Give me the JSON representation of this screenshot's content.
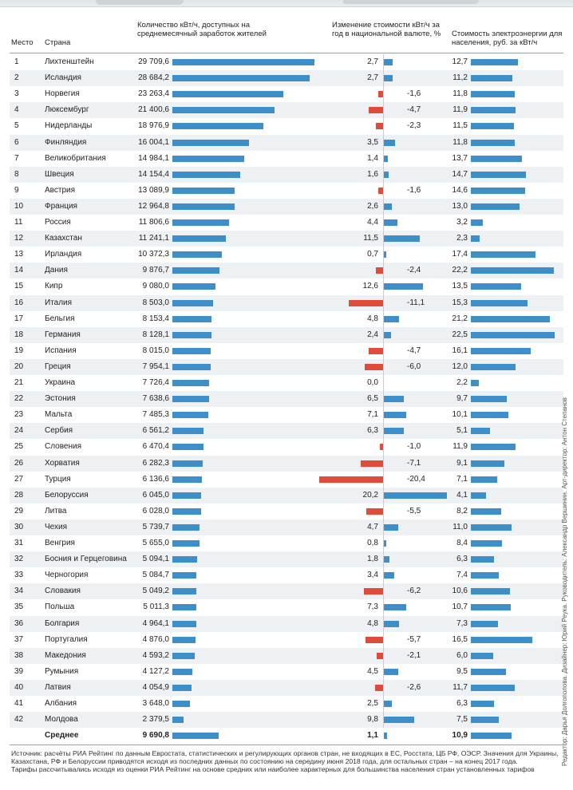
{
  "headers": {
    "rank": "Место",
    "country": "Страна",
    "kwh": "Количество кВт/ч, доступных на среднемесячный заработок жителей",
    "change": "Изменение стоимости кВт/ч за год в национальной валюте, %",
    "price": "Стоимость электроэнергии для населения, руб. за кВт/ч"
  },
  "colors": {
    "positive": "#3d8ec9",
    "negative": "#e04b3a",
    "shade": "#eef1f3"
  },
  "chart_data": {
    "type": "table",
    "title": "",
    "rows": [
      {
        "rank": "1",
        "country": "Лихтенштейн",
        "kwh": "29 709,6",
        "kwh_value": 29709.6,
        "change": "2,7",
        "change_value": 2.7,
        "price": "12,7",
        "price_value": 12.7
      },
      {
        "rank": "2",
        "country": "Исландия",
        "kwh": "28 684,2",
        "kwh_value": 28684.2,
        "change": "2,7",
        "change_value": 2.7,
        "price": "11,2",
        "price_value": 11.2
      },
      {
        "rank": "3",
        "country": "Норвегия",
        "kwh": "23 263,4",
        "kwh_value": 23263.4,
        "change": "-1,6",
        "change_value": -1.6,
        "price": "11,8",
        "price_value": 11.8
      },
      {
        "rank": "4",
        "country": "Люксембург",
        "kwh": "21 400,6",
        "kwh_value": 21400.6,
        "change": "-4,7",
        "change_value": -4.7,
        "price": "11,9",
        "price_value": 11.9
      },
      {
        "rank": "5",
        "country": "Нидерланды",
        "kwh": "18 976,9",
        "kwh_value": 18976.9,
        "change": "-2,3",
        "change_value": -2.3,
        "price": "11,5",
        "price_value": 11.5
      },
      {
        "rank": "6",
        "country": "Финляндия",
        "kwh": "16 004,1",
        "kwh_value": 16004.1,
        "change": "3,5",
        "change_value": 3.5,
        "price": "11,8",
        "price_value": 11.8
      },
      {
        "rank": "7",
        "country": "Великобритания",
        "kwh": "14 984,1",
        "kwh_value": 14984.1,
        "change": "1,4",
        "change_value": 1.4,
        "price": "13,7",
        "price_value": 13.7
      },
      {
        "rank": "8",
        "country": "Швеция",
        "kwh": "14 154,4",
        "kwh_value": 14154.4,
        "change": "1,6",
        "change_value": 1.6,
        "price": "14,7",
        "price_value": 14.7
      },
      {
        "rank": "9",
        "country": "Австрия",
        "kwh": "13 089,9",
        "kwh_value": 13089.9,
        "change": "-1,6",
        "change_value": -1.6,
        "price": "14,6",
        "price_value": 14.6
      },
      {
        "rank": "10",
        "country": "Франция",
        "kwh": "12 964,8",
        "kwh_value": 12964.8,
        "change": "2,6",
        "change_value": 2.6,
        "price": "13,0",
        "price_value": 13.0
      },
      {
        "rank": "11",
        "country": "Россия",
        "kwh": "11 806,6",
        "kwh_value": 11806.6,
        "change": "4,4",
        "change_value": 4.4,
        "price": "3,2",
        "price_value": 3.2
      },
      {
        "rank": "12",
        "country": "Казахстан",
        "kwh": "11 241,1",
        "kwh_value": 11241.1,
        "change": "11,5",
        "change_value": 11.5,
        "price": "2,3",
        "price_value": 2.3
      },
      {
        "rank": "13",
        "country": "Ирландия",
        "kwh": "10 372,3",
        "kwh_value": 10372.3,
        "change": "0,7",
        "change_value": 0.7,
        "price": "17,4",
        "price_value": 17.4
      },
      {
        "rank": "14",
        "country": "Дания",
        "kwh": "9 876,7",
        "kwh_value": 9876.7,
        "change": "-2,4",
        "change_value": -2.4,
        "price": "22,2",
        "price_value": 22.2
      },
      {
        "rank": "15",
        "country": "Кипр",
        "kwh": "9 080,0",
        "kwh_value": 9080.0,
        "change": "12,6",
        "change_value": 12.6,
        "price": "13,5",
        "price_value": 13.5
      },
      {
        "rank": "16",
        "country": "Италия",
        "kwh": "8 503,0",
        "kwh_value": 8503.0,
        "change": "-11,1",
        "change_value": -11.1,
        "price": "15,3",
        "price_value": 15.3
      },
      {
        "rank": "17",
        "country": "Бельгия",
        "kwh": "8 153,4",
        "kwh_value": 8153.4,
        "change": "4,8",
        "change_value": 4.8,
        "price": "21,2",
        "price_value": 21.2
      },
      {
        "rank": "18",
        "country": "Германия",
        "kwh": "8 128,1",
        "kwh_value": 8128.1,
        "change": "2,4",
        "change_value": 2.4,
        "price": "22,5",
        "price_value": 22.5
      },
      {
        "rank": "19",
        "country": "Испания",
        "kwh": "8 015,0",
        "kwh_value": 8015.0,
        "change": "-4,7",
        "change_value": -4.7,
        "price": "16,1",
        "price_value": 16.1
      },
      {
        "rank": "20",
        "country": "Греция",
        "kwh": "7 954,1",
        "kwh_value": 7954.1,
        "change": "-6,0",
        "change_value": -6.0,
        "price": "12,0",
        "price_value": 12.0
      },
      {
        "rank": "21",
        "country": "Украина",
        "kwh": "7 726,4",
        "kwh_value": 7726.4,
        "change": "0,0",
        "change_value": 0.0,
        "price": "2,2",
        "price_value": 2.2
      },
      {
        "rank": "22",
        "country": "Эстония",
        "kwh": "7 638,6",
        "kwh_value": 7638.6,
        "change": "6,5",
        "change_value": 6.5,
        "price": "9,7",
        "price_value": 9.7
      },
      {
        "rank": "23",
        "country": "Мальта",
        "kwh": "7 485,3",
        "kwh_value": 7485.3,
        "change": "7,1",
        "change_value": 7.1,
        "price": "10,1",
        "price_value": 10.1
      },
      {
        "rank": "24",
        "country": "Сербия",
        "kwh": "6 561,2",
        "kwh_value": 6561.2,
        "change": "6,3",
        "change_value": 6.3,
        "price": "5,1",
        "price_value": 5.1
      },
      {
        "rank": "25",
        "country": "Словения",
        "kwh": "6 470,4",
        "kwh_value": 6470.4,
        "change": "-1,0",
        "change_value": -1.0,
        "price": "11,9",
        "price_value": 11.9
      },
      {
        "rank": "26",
        "country": "Хорватия",
        "kwh": "6 282,3",
        "kwh_value": 6282.3,
        "change": "-7,1",
        "change_value": -7.1,
        "price": "9,1",
        "price_value": 9.1
      },
      {
        "rank": "27",
        "country": "Турция",
        "kwh": "6 136,6",
        "kwh_value": 6136.6,
        "change": "-20,4",
        "change_value": -20.4,
        "price": "7,1",
        "price_value": 7.1
      },
      {
        "rank": "28",
        "country": "Белоруссия",
        "kwh": "6 045,0",
        "kwh_value": 6045.0,
        "change": "20,2",
        "change_value": 20.2,
        "price": "4,1",
        "price_value": 4.1
      },
      {
        "rank": "29",
        "country": "Литва",
        "kwh": "6 028,0",
        "kwh_value": 6028.0,
        "change": "-5,5",
        "change_value": -5.5,
        "price": "8,2",
        "price_value": 8.2
      },
      {
        "rank": "30",
        "country": "Чехия",
        "kwh": "5 739,7",
        "kwh_value": 5739.7,
        "change": "4,7",
        "change_value": 4.7,
        "price": "11,0",
        "price_value": 11.0
      },
      {
        "rank": "31",
        "country": "Венгрия",
        "kwh": "5 655,0",
        "kwh_value": 5655.0,
        "change": "0,8",
        "change_value": 0.8,
        "price": "8,4",
        "price_value": 8.4
      },
      {
        "rank": "32",
        "country": "Босния и Герцеговина",
        "kwh": "5 094,1",
        "kwh_value": 5094.1,
        "change": "1,8",
        "change_value": 1.8,
        "price": "6,3",
        "price_value": 6.3
      },
      {
        "rank": "33",
        "country": "Черногория",
        "kwh": "5 084,7",
        "kwh_value": 5084.7,
        "change": "3,4",
        "change_value": 3.4,
        "price": "7,4",
        "price_value": 7.4
      },
      {
        "rank": "34",
        "country": "Словакия",
        "kwh": "5 049,2",
        "kwh_value": 5049.2,
        "change": "-6,2",
        "change_value": -6.2,
        "price": "10,6",
        "price_value": 10.6
      },
      {
        "rank": "35",
        "country": "Польша",
        "kwh": "5 011,3",
        "kwh_value": 5011.3,
        "change": "7,3",
        "change_value": 7.3,
        "price": "10,7",
        "price_value": 10.7
      },
      {
        "rank": "36",
        "country": "Болгария",
        "kwh": "4 964,1",
        "kwh_value": 4964.1,
        "change": "4,8",
        "change_value": 4.8,
        "price": "7,3",
        "price_value": 7.3
      },
      {
        "rank": "37",
        "country": "Португалия",
        "kwh": "4 876,0",
        "kwh_value": 4876.0,
        "change": "-5,7",
        "change_value": -5.7,
        "price": "16,5",
        "price_value": 16.5
      },
      {
        "rank": "38",
        "country": "Македония",
        "kwh": "4 593,2",
        "kwh_value": 4593.2,
        "change": "-2,1",
        "change_value": -2.1,
        "price": "6,0",
        "price_value": 6.0
      },
      {
        "rank": "39",
        "country": "Румыния",
        "kwh": "4 127,2",
        "kwh_value": 4127.2,
        "change": "4,5",
        "change_value": 4.5,
        "price": "9,5",
        "price_value": 9.5
      },
      {
        "rank": "40",
        "country": "Латвия",
        "kwh": "4 054,9",
        "kwh_value": 4054.9,
        "change": "-2,6",
        "change_value": -2.6,
        "price": "11,7",
        "price_value": 11.7
      },
      {
        "rank": "41",
        "country": "Албания",
        "kwh": "3 648,0",
        "kwh_value": 3648.0,
        "change": "2,5",
        "change_value": 2.5,
        "price": "6,3",
        "price_value": 6.3
      },
      {
        "rank": "42",
        "country": "Молдова",
        "kwh": "2 379,5",
        "kwh_value": 2379.5,
        "change": "9,8",
        "change_value": 9.8,
        "price": "7,5",
        "price_value": 7.5
      },
      {
        "rank": "",
        "country": "Среднее",
        "kwh": "9 690,8",
        "kwh_value": 9690.8,
        "change": "1,1",
        "change_value": 1.1,
        "price": "10,9",
        "price_value": 10.9
      }
    ]
  },
  "footnote": {
    "line1": "Источник: расчёты РИА Рейтинг по данным Евростата, статистических и регулирующих органов стран, не входящих в ЕС, Росстата, ЦБ РФ, ОЭСР. Значения для Украины,",
    "line2": "Казахстана, РФ и Белоруссии приводятся исходя из последних данных по состоянию на середину июня 2018 года, для остальных стран – на конец 2017 года.",
    "line3": "Тарифы рассчитывались исходя из оценки РИА Рейтинг на основе средних или наиболее характерных для большинства населения стран установленных тарифов"
  },
  "credits": "Редактор: Дарья Долгополова. Дизайнер: Юрий Реука. Руководитель: Александр Вершинин. Арт-директор: Антон Степанов"
}
